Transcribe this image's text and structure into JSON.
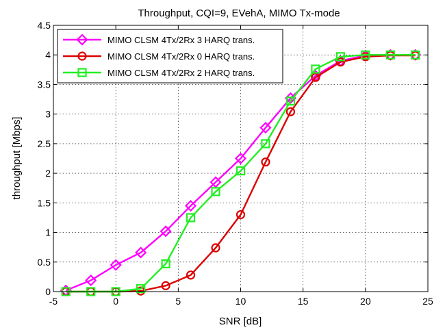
{
  "chart_data": {
    "type": "line",
    "title": "Throughput, CQI=9, EVehA, MIMO Tx-mode",
    "xlabel": "SNR [dB]",
    "ylabel": "throughput [Mbps]",
    "xlim": [
      -5,
      25
    ],
    "ylim": [
      0,
      4.5
    ],
    "xticks": [
      -5,
      0,
      5,
      10,
      15,
      20,
      25
    ],
    "yticks": [
      0,
      0.5,
      1,
      1.5,
      2,
      2.5,
      3,
      3.5,
      4,
      4.5
    ],
    "xtick_labels": [
      "-5",
      "0",
      "5",
      "10",
      "15",
      "20",
      "25"
    ],
    "ytick_labels": [
      "0",
      "0.5",
      "1",
      "1.5",
      "2",
      "2.5",
      "3",
      "3.5",
      "4",
      "4.5"
    ],
    "grid": true,
    "legend_position": "top-left",
    "x": [
      -4,
      -2,
      0,
      2,
      4,
      6,
      8,
      10,
      12,
      14,
      16,
      18,
      20,
      22,
      24
    ],
    "series": [
      {
        "name": "MIMO CLSM 4Tx/2Rx 3 HARQ trans.",
        "color": "#ff00ff",
        "marker": "diamond",
        "values": [
          0.02,
          0.19,
          0.45,
          0.66,
          1.02,
          1.45,
          1.85,
          2.25,
          2.77,
          3.27,
          3.65,
          3.9,
          3.99,
          4.0,
          4.0
        ]
      },
      {
        "name": "MIMO CLSM 4Tx/2Rx 0 HARQ trans.",
        "color": "#dd0000",
        "marker": "circle",
        "values": [
          0.0,
          0.0,
          0.0,
          0.01,
          0.1,
          0.28,
          0.74,
          1.3,
          2.19,
          3.04,
          3.62,
          3.88,
          3.97,
          3.99,
          3.99
        ]
      },
      {
        "name": "MIMO CLSM 4Tx/2Rx 2 HARQ trans.",
        "color": "#22ee22",
        "marker": "square",
        "values": [
          0.0,
          0.0,
          0.0,
          0.05,
          0.47,
          1.25,
          1.69,
          2.04,
          2.5,
          3.22,
          3.76,
          3.97,
          4.0,
          4.0,
          4.0
        ]
      }
    ]
  }
}
